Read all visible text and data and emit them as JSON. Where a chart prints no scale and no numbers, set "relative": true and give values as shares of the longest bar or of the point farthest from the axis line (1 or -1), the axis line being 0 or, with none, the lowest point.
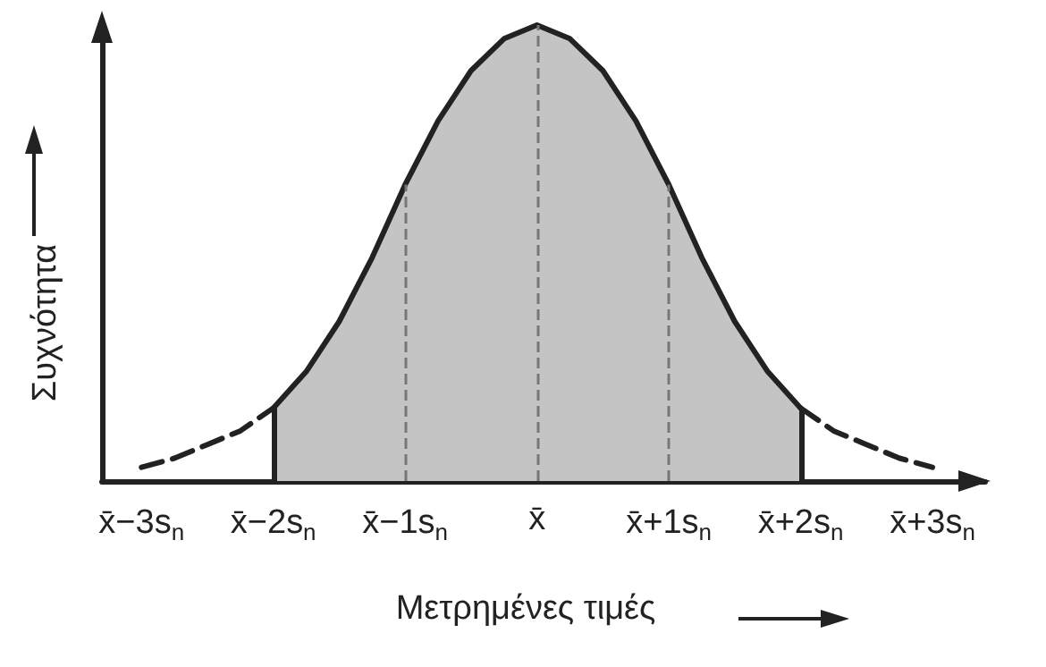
{
  "chart_data": {
    "type": "area",
    "relative": true,
    "xlabel": "Μετρημένες τιμές",
    "ylabel": "Συχνότητα",
    "xlim": [
      -3.3,
      3.4
    ],
    "xticks": [
      {
        "value": -3,
        "label": "x̄−3s$_{n}$"
      },
      {
        "value": -2,
        "label": "x̄−2s$_{n}$"
      },
      {
        "value": -1,
        "label": "x̄−1s$_{n}$"
      },
      {
        "value": 0,
        "label": "x̄"
      },
      {
        "value": 1,
        "label": "x̄+1s$_{n}$"
      },
      {
        "value": 2,
        "label": "x̄+2s$_{n}$"
      },
      {
        "value": 3,
        "label": "x̄+3s$_{n}$"
      }
    ],
    "series": [
      {
        "type": "line",
        "line_style": "dashed",
        "color": "#222222",
        "x": [
          -3,
          -2.75,
          -2.5,
          -2.25,
          -2
        ],
        "values": [
          0.03,
          0.05,
          0.08,
          0.11,
          0.16
        ]
      },
      {
        "line_style": "solid",
        "color": "#c4c4c4",
        "x": [
          -2,
          -1.75,
          -1.5,
          -1.25,
          -1,
          -0.75,
          -0.5,
          -0.25,
          0,
          0.25,
          0.5,
          0.75,
          1,
          1.25,
          1.5,
          1.75,
          2
        ],
        "values": [
          0.16,
          0.24,
          0.35,
          0.49,
          0.65,
          0.79,
          0.9,
          0.97,
          1,
          0.97,
          0.9,
          0.79,
          0.65,
          0.49,
          0.35,
          0.24,
          0.16
        ]
      },
      {
        "type": "line",
        "line_style": "dashed",
        "color": "#222222",
        "x": [
          2,
          2.25,
          2.5,
          2.75,
          3
        ],
        "values": [
          0.16,
          0.11,
          0.08,
          0.05,
          0.03
        ]
      }
    ],
    "ref_lines": [
      {
        "axis": "x",
        "value": -2,
        "line_style": "solid",
        "color": "#222222"
      },
      {
        "axis": "x",
        "value": -1,
        "line_style": "dashed",
        "color": "#777777"
      },
      {
        "axis": "x",
        "value": 0,
        "line_style": "dashed",
        "color": "#777777"
      },
      {
        "axis": "x",
        "value": 1,
        "line_style": "dashed",
        "color": "#777777"
      },
      {
        "axis": "x",
        "value": 2,
        "line_style": "solid",
        "color": "#222222"
      }
    ],
    "grid": false,
    "marker": "none"
  }
}
